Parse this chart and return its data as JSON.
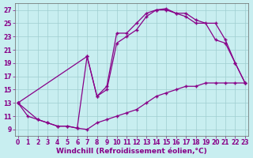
{
  "xlabel": "Windchill (Refroidissement éolien,°C)",
  "bg_color": "#c8eef0",
  "line_color": "#880088",
  "xlim_min": -0.3,
  "xlim_max": 23.3,
  "ylim_min": 8.0,
  "ylim_max": 28.0,
  "xticks": [
    0,
    1,
    2,
    3,
    4,
    5,
    6,
    7,
    8,
    9,
    10,
    11,
    12,
    13,
    14,
    15,
    16,
    17,
    18,
    19,
    20,
    21,
    22,
    23
  ],
  "yticks": [
    9,
    11,
    13,
    15,
    17,
    19,
    21,
    23,
    25,
    27
  ],
  "curve1_x": [
    0,
    1,
    2,
    3,
    4,
    5,
    6,
    7,
    8,
    9,
    10,
    11,
    12,
    13,
    14,
    15,
    16,
    17,
    18,
    19,
    20,
    21,
    22,
    23
  ],
  "curve1_y": [
    13,
    11,
    10.5,
    10,
    9.5,
    9.5,
    9.2,
    9.0,
    10.0,
    10.5,
    11.0,
    11.5,
    12.0,
    13.0,
    14.0,
    14.5,
    15.0,
    15.5,
    15.5,
    16.0,
    16.0,
    16.0,
    16.0,
    16.0
  ],
  "curve2_x": [
    0,
    2,
    3,
    4,
    5,
    6,
    7,
    8,
    9,
    10,
    11,
    12,
    13,
    14,
    15,
    16,
    17,
    18,
    19,
    20,
    21,
    22,
    23
  ],
  "curve2_y": [
    13,
    10.5,
    10,
    9.5,
    9.5,
    9.2,
    20.0,
    14.0,
    15.0,
    22.0,
    23.0,
    24.0,
    26.0,
    27.0,
    27.0,
    26.5,
    26.5,
    25.5,
    25.0,
    22.5,
    22.0,
    19.0,
    16.0
  ],
  "curve3_x": [
    0,
    7,
    8,
    9,
    10,
    11,
    12,
    13,
    14,
    15,
    16,
    17,
    18,
    20,
    21,
    22,
    23
  ],
  "curve3_y": [
    13,
    20.0,
    14.0,
    15.5,
    23.5,
    23.5,
    25.0,
    26.5,
    27.0,
    27.2,
    26.5,
    26.0,
    25.0,
    25.0,
    22.5,
    19.0,
    16.0
  ],
  "grid_color": "#9fcdd0",
  "tick_fontsize": 5.5,
  "xlabel_fontsize": 6.5,
  "linewidth": 0.9,
  "markersize": 3.5,
  "markeredgewidth": 1.0
}
